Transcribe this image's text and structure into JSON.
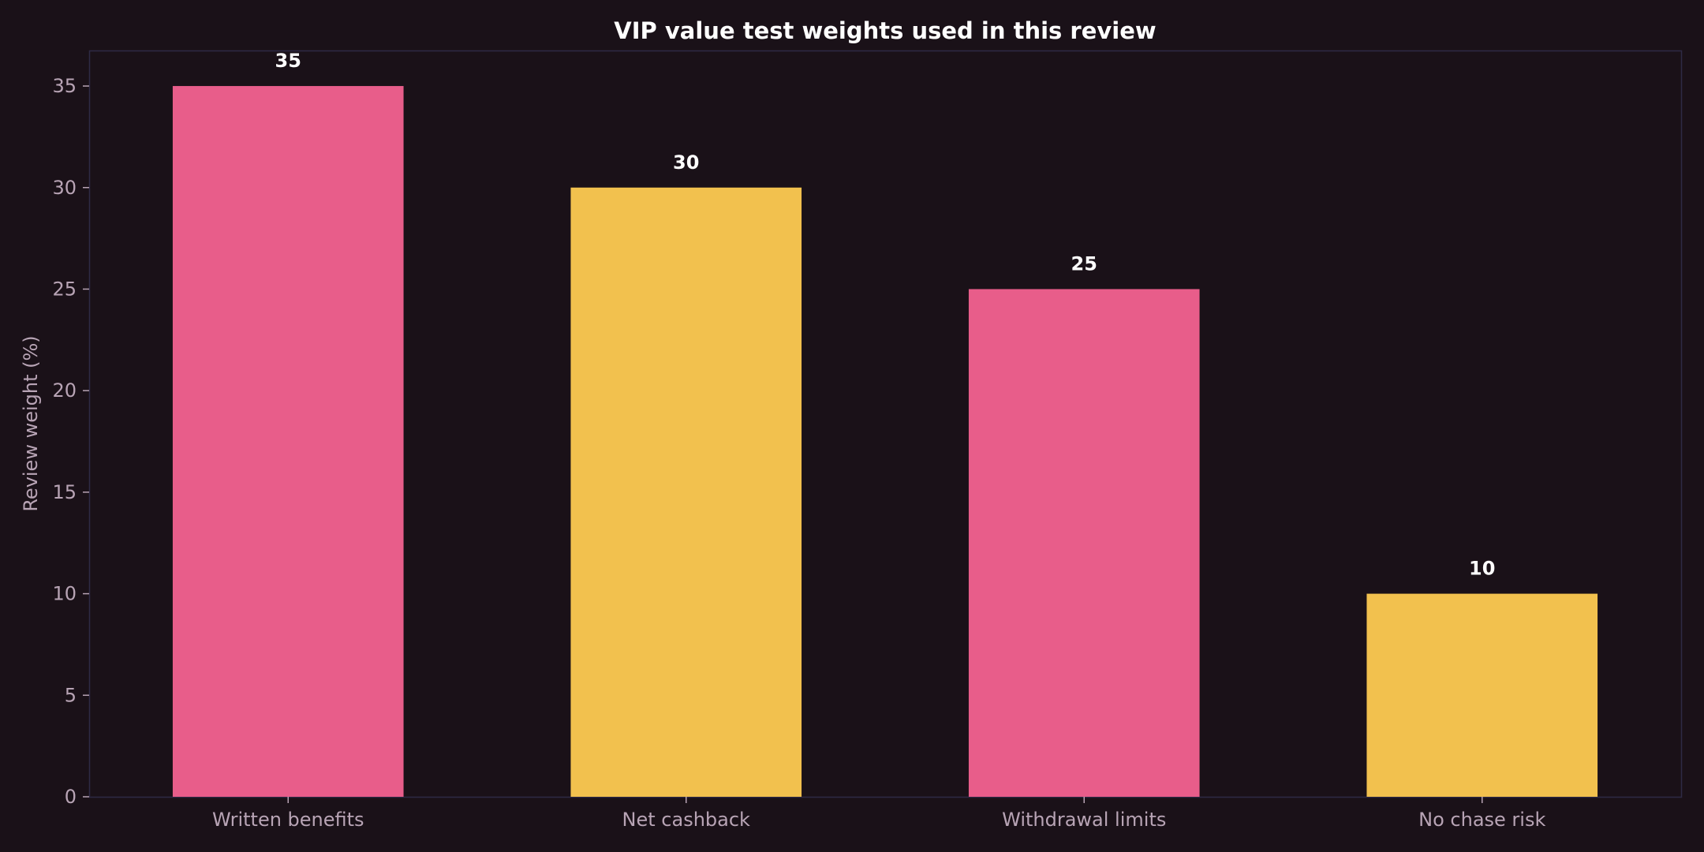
{
  "chart_data": {
    "type": "bar",
    "title": "VIP value test weights used in this review",
    "xlabel": "",
    "ylabel": "Review weight (%)",
    "categories": [
      "Written benefits",
      "Net cashback",
      "Withdrawal limits",
      "No chase risk"
    ],
    "values": [
      35,
      30,
      25,
      10
    ],
    "data_labels": [
      "35",
      "30",
      "25",
      "10"
    ],
    "bar_colors": [
      "#e85d8a",
      "#f2c14e",
      "#e85d8a",
      "#f2c14e"
    ],
    "ylim": [
      0,
      36.75
    ],
    "yticks": [
      0,
      5,
      10,
      15,
      20,
      25,
      30,
      35
    ],
    "grid": false,
    "legend": "none",
    "colors": {
      "background": "#1a1118",
      "frame": "#2e2a45",
      "text_muted": "#b8a4b5",
      "text_strong": "#ffffff"
    }
  }
}
